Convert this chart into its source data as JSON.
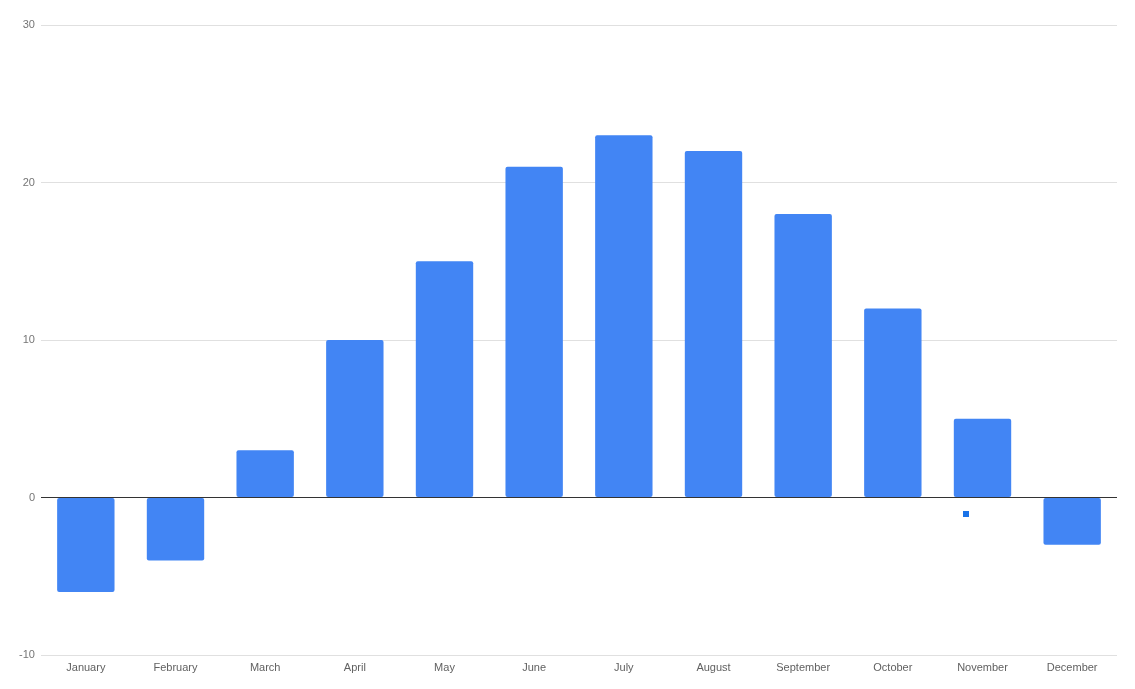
{
  "chart_data": {
    "type": "bar",
    "categories": [
      "January",
      "February",
      "March",
      "April",
      "May",
      "June",
      "July",
      "August",
      "September",
      "October",
      "November",
      "December"
    ],
    "values": [
      -6,
      -4,
      3,
      10,
      15,
      21,
      23,
      22,
      18,
      12,
      5,
      -3
    ],
    "color": "#4285f4",
    "ylim": [
      -10,
      30
    ],
    "yticks": [
      -10,
      0,
      10,
      20,
      30
    ],
    "grid": "y"
  }
}
